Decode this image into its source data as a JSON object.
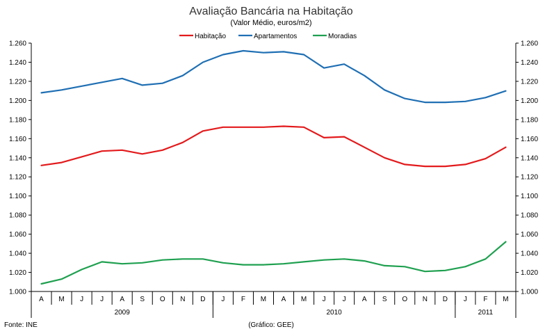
{
  "chart_data": {
    "type": "line",
    "title": "Avaliação Bancária na Habitação",
    "subtitle": "(Valor Médio, euros/m2)",
    "source_label": "Fonte: INE",
    "credit_label": "(Gráfico: GEE)",
    "categories": [
      "A",
      "M",
      "J",
      "J",
      "A",
      "S",
      "O",
      "N",
      "D",
      "J",
      "F",
      "M",
      "A",
      "M",
      "J",
      "J",
      "A",
      "S",
      "O",
      "N",
      "D",
      "J",
      "F",
      "M"
    ],
    "years": [
      {
        "label": "2009",
        "count": 9
      },
      {
        "label": "2010",
        "count": 12
      },
      {
        "label": "2011",
        "count": 3
      }
    ],
    "ylim": [
      1.0,
      1.26
    ],
    "yticks": [
      "1.000",
      "1.020",
      "1.040",
      "1.060",
      "1.080",
      "1.100",
      "1.120",
      "1.140",
      "1.160",
      "1.180",
      "1.200",
      "1.220",
      "1.240",
      "1.260"
    ],
    "legend_position": "top-center",
    "grid": false,
    "series": [
      {
        "name": "Habitação",
        "color": "#e31a1c",
        "values": [
          1.132,
          1.135,
          1.141,
          1.147,
          1.148,
          1.144,
          1.148,
          1.156,
          1.168,
          1.172,
          1.172,
          1.172,
          1.173,
          1.172,
          1.161,
          1.162,
          1.151,
          1.14,
          1.133,
          1.131,
          1.131,
          1.133,
          1.139,
          1.151
        ]
      },
      {
        "name": "Apartamentos",
        "color": "#1f6fb4",
        "values": [
          1.208,
          1.211,
          1.215,
          1.219,
          1.223,
          1.216,
          1.218,
          1.226,
          1.24,
          1.248,
          1.252,
          1.25,
          1.251,
          1.248,
          1.234,
          1.238,
          1.226,
          1.211,
          1.202,
          1.198,
          1.198,
          1.199,
          1.203,
          1.21
        ]
      },
      {
        "name": "Moradias",
        "color": "#1fa050",
        "values": [
          1.008,
          1.013,
          1.023,
          1.031,
          1.029,
          1.03,
          1.033,
          1.034,
          1.034,
          1.03,
          1.028,
          1.028,
          1.029,
          1.031,
          1.033,
          1.034,
          1.032,
          1.027,
          1.026,
          1.021,
          1.022,
          1.026,
          1.034,
          1.052
        ]
      }
    ]
  }
}
